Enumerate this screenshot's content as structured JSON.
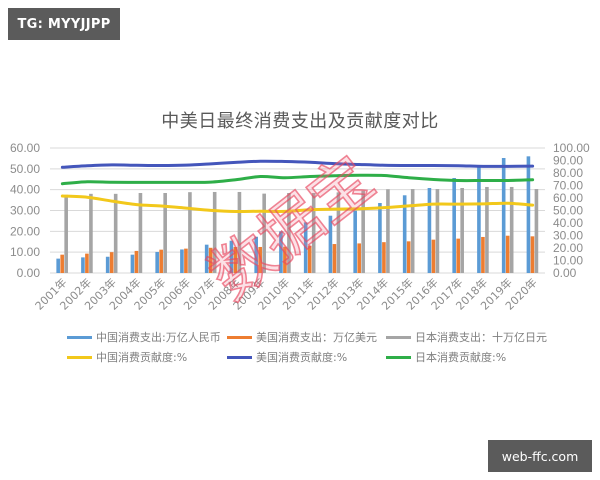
{
  "badges": {
    "top_left": "TG: MYYJJPP",
    "bottom_right": "web-ffc.com"
  },
  "watermark": "数据宝",
  "chart_data": {
    "type": "bar",
    "title": "中美日最终消费支出及贡献度对比",
    "xlabel": "",
    "ylabel": "",
    "categories": [
      "2001年",
      "2002年",
      "2003年",
      "2004年",
      "2005年",
      "2006年",
      "2007年",
      "2008年",
      "2009年",
      "2010年",
      "2011年",
      "2012年",
      "2013年",
      "2014年",
      "2015年",
      "2016年",
      "2017年",
      "2018年",
      "2019年",
      "2020年"
    ],
    "y_left": {
      "range": [
        0,
        60
      ],
      "ticks": [
        0,
        10,
        20,
        30,
        40,
        50,
        60
      ],
      "tick_labels": [
        "0.00",
        "10.00",
        "20.00",
        "30.00",
        "40.00",
        "50.00",
        "60.00"
      ]
    },
    "y_right": {
      "range": [
        0,
        100
      ],
      "ticks": [
        0,
        10,
        20,
        30,
        40,
        50,
        60,
        70,
        80,
        90,
        100
      ],
      "tick_labels": [
        "0.00",
        "10.00",
        "20.00",
        "30.00",
        "40.00",
        "50.00",
        "60.00",
        "70.00",
        "80.00",
        "90.00",
        "100.00"
      ]
    },
    "grid": true,
    "legend_position": "bottom",
    "series": [
      {
        "name": "中国消费支出:万亿人民币",
        "type": "bar",
        "axis": "left",
        "color": "#5b9bd5",
        "values": [
          6.9,
          7.5,
          7.8,
          8.8,
          10.1,
          11.3,
          13.6,
          15.5,
          17.4,
          20.0,
          24.3,
          27.5,
          29.9,
          33.6,
          37.3,
          40.8,
          45.6,
          50.9,
          55.2,
          56.0
        ]
      },
      {
        "name": "美国消费支出：万亿美元",
        "type": "bar",
        "axis": "left",
        "color": "#ed7d31",
        "values": [
          8.8,
          9.3,
          10.0,
          10.6,
          11.2,
          11.7,
          12.1,
          12.5,
          12.5,
          12.6,
          13.1,
          13.9,
          14.2,
          14.8,
          15.2,
          16.0,
          16.5,
          17.3,
          17.9,
          17.6
        ]
      },
      {
        "name": "日本消费支出：十万亿日元",
        "type": "bar",
        "axis": "left",
        "color": "#a5a5a5",
        "values": [
          37.5,
          38.0,
          38.0,
          38.4,
          38.4,
          38.8,
          38.9,
          38.9,
          38.1,
          38.4,
          38.4,
          38.7,
          39.5,
          40.2,
          40.3,
          40.3,
          40.8,
          41.3,
          41.3,
          40.3
        ]
      },
      {
        "name": "中国消费贡献度:%",
        "type": "line",
        "axis": "right",
        "color": "#f2c81b",
        "values": [
          61.6,
          60.6,
          57.5,
          54.7,
          53.6,
          51.9,
          50.1,
          49.2,
          49.4,
          49.3,
          50.6,
          51.1,
          51.4,
          52.3,
          53.7,
          55.1,
          55.1,
          55.3,
          55.8,
          54.3
        ]
      },
      {
        "name": "美国消费贡献度:%",
        "type": "line",
        "axis": "right",
        "color": "#4456bb",
        "values": [
          84.6,
          85.8,
          86.5,
          86.2,
          86.0,
          86.3,
          87.3,
          88.5,
          89.4,
          89.2,
          88.6,
          87.5,
          86.8,
          86.2,
          86.0,
          86.0,
          85.8,
          85.3,
          85.3,
          85.5
        ]
      },
      {
        "name": "日本消费贡献度:%",
        "type": "line",
        "axis": "right",
        "color": "#2eae48",
        "values": [
          71.4,
          73.0,
          72.6,
          72.5,
          72.5,
          72.5,
          72.7,
          74.6,
          77.2,
          76.2,
          77.2,
          77.8,
          78.2,
          78.0,
          76.2,
          74.8,
          74.0,
          74.0,
          74.0,
          74.6
        ]
      }
    ]
  }
}
